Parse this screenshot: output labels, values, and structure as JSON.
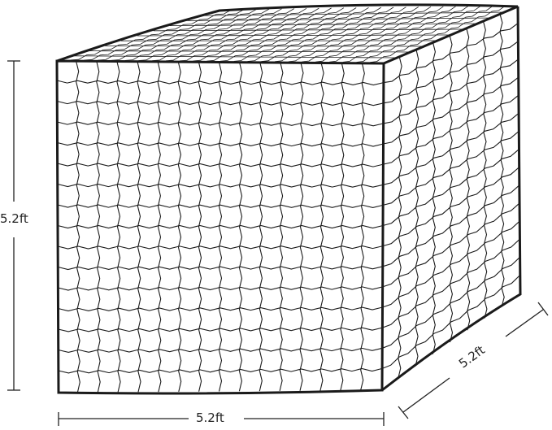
{
  "dimensions": {
    "height_label": "5.2ft",
    "width_label": "5.2ft",
    "depth_label": "5.2ft"
  },
  "colors": {
    "line": "#1a1a1a",
    "background": "#ffffff"
  }
}
